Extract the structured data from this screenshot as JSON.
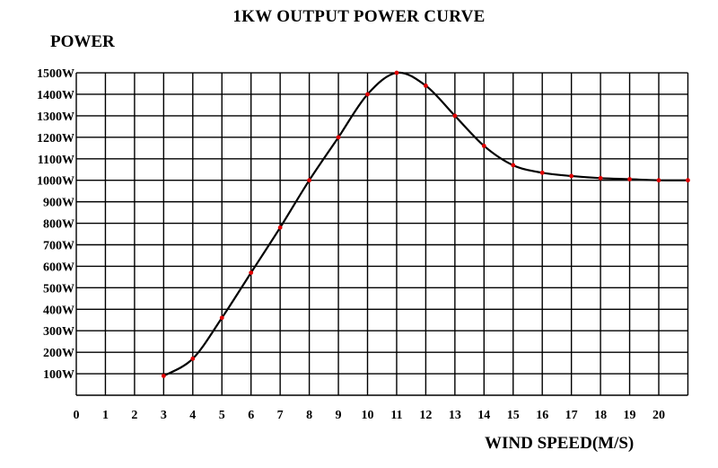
{
  "chart_data": {
    "type": "line",
    "title": "1KW OUTPUT POWER CURVE",
    "ylabel": "POWER",
    "xlabel": "WIND SPEED(M/S)",
    "xlim": [
      0,
      21
    ],
    "ylim": [
      0,
      1500
    ],
    "grid": true,
    "x_ticks": [
      "0",
      "1",
      "2",
      "3",
      "4",
      "5",
      "6",
      "7",
      "8",
      "9",
      "10",
      "11",
      "12",
      "13",
      "14",
      "15",
      "16",
      "17",
      "18",
      "19",
      "20"
    ],
    "y_ticks": [
      "100W",
      "200W",
      "300W",
      "400W",
      "500W",
      "600W",
      "700W",
      "800W",
      "900W",
      "1000W",
      "1100W",
      "1200W",
      "1300W",
      "1400W",
      "1500W"
    ],
    "curve_color": "#000000",
    "marker_color": "#e00000",
    "series": [
      {
        "x": [
          3,
          4,
          5,
          6,
          7,
          8,
          9,
          10,
          11,
          12,
          13,
          14,
          15,
          16,
          17,
          18,
          19,
          20,
          21
        ],
        "y": [
          90,
          170,
          360,
          570,
          780,
          1000,
          1200,
          1400,
          1500,
          1440,
          1300,
          1160,
          1070,
          1035,
          1020,
          1010,
          1005,
          1000,
          1000
        ]
      }
    ]
  }
}
